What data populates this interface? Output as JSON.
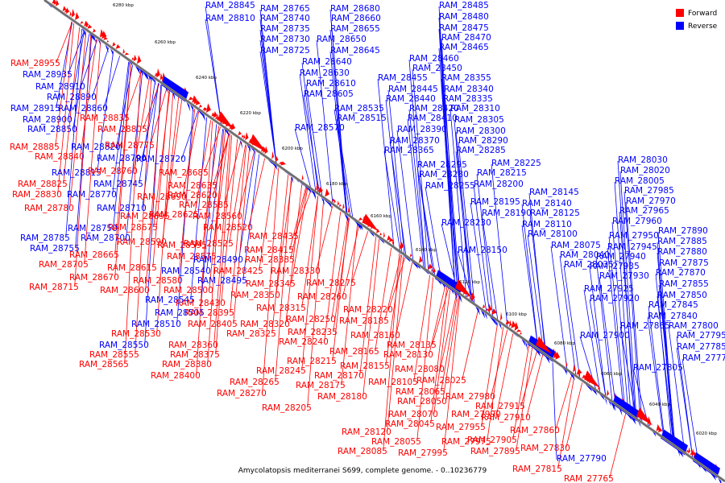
{
  "caption": "Amycolatopsis mediterranei S699, complete genome. - 0..10236779",
  "legend": [
    {
      "label": "Forward",
      "color": "#ff0000"
    },
    {
      "label": "Reverse",
      "color": "#0000ff"
    }
  ],
  "ticks": [
    "6280 kbp",
    "6260 kbp",
    "6240 kbp",
    "6220 kbp",
    "6200 kbp",
    "6180 kbp",
    "6160 kbp",
    "6140 kbp",
    "6120 kbp",
    "6100 kbp",
    "6080 kbp",
    "6060 kbp",
    "6040 kbp",
    "6020 kbp"
  ],
  "reverse_labels": [
    "RAM_28845",
    "RAM_28765",
    "RAM_28680",
    "RAM_28810",
    "RAM_28740",
    "RAM_28660",
    "RAM_28735",
    "RAM_28655",
    "RAM_28730",
    "RAM_28650",
    "RAM_28725",
    "RAM_28645",
    "RAM_28640",
    "RAM_28630",
    "RAM_28610",
    "RAM_28605",
    "RAM_28485",
    "RAM_28480",
    "RAM_28475",
    "RAM_28470",
    "RAM_28465",
    "RAM_28460",
    "RAM_28450",
    "RAM_28455",
    "RAM_28355",
    "RAM_28445",
    "RAM_28340",
    "RAM_28440",
    "RAM_28335",
    "RAM_28535",
    "RAM_28420",
    "RAM_28310",
    "RAM_28515",
    "RAM_28410",
    "RAM_28305",
    "RAM_28570",
    "RAM_28390",
    "RAM_28300",
    "RAM_28370",
    "RAM_28290",
    "RAM_28365",
    "RAM_28285",
    "RAM_28225",
    "RAM_28295",
    "RAM_28215",
    "RAM_28280",
    "RAM_28200",
    "RAM_28255",
    "RAM_28145",
    "RAM_28195",
    "RAM_28140",
    "RAM_28190",
    "RAM_28230",
    "RAM_28125",
    "RAM_28110",
    "RAM_28100",
    "RAM_28075",
    "RAM_28040",
    "RAM_28035",
    "RAM_28150",
    "RAM_28030",
    "RAM_28020",
    "RAM_28005",
    "RAM_27985",
    "RAM_27970",
    "RAM_27965",
    "RAM_27960",
    "RAM_27950",
    "RAM_27890",
    "RAM_27945",
    "RAM_27885",
    "RAM_27940",
    "RAM_27880",
    "RAM_27935",
    "RAM_27875",
    "RAM_27930",
    "RAM_27870",
    "RAM_27925",
    "RAM_27855",
    "RAM_27920",
    "RAM_27850",
    "RAM_27845",
    "RAM_27840",
    "RAM_27865",
    "RAM_27800",
    "RAM_27900",
    "RAM_27795",
    "RAM_27785",
    "RAM_27775",
    "RAM_27805",
    "RAM_27790",
    "RAM_28935",
    "RAM_28910",
    "RAM_28890",
    "RAM_28860",
    "RAM_28900",
    "RAM_28850",
    "RAM_28820",
    "RAM_28790",
    "RAM_28720",
    "RAM_28815",
    "RAM_28745",
    "RAM_28770",
    "RAM_28710",
    "RAM_28750",
    "RAM_28700",
    "RAM_28785",
    "RAM_28755",
    "RAM_28490",
    "RAM_28540",
    "RAM_28495",
    "RAM_28545",
    "RAM_28505",
    "RAM_28510",
    "RAM_28550",
    "RAM_28915"
  ],
  "forward_labels": [
    "RAM_28955",
    "RAM_28835",
    "RAM_28805",
    "RAM_28885",
    "RAM_28775",
    "RAM_28840",
    "RAM_28760",
    "RAM_28685",
    "RAM_28825",
    "RAM_28635",
    "RAM_28830",
    "RAM_28690",
    "RAM_28620",
    "RAM_28585",
    "RAM_28780",
    "RAM_28695",
    "RAM_28625",
    "RAM_28560",
    "RAM_28675",
    "RAM_28520",
    "RAM_28590",
    "RAM_28435",
    "RAM_28595",
    "RAM_28525",
    "RAM_28415",
    "RAM_28665",
    "RAM_28575",
    "RAM_28385",
    "RAM_28705",
    "RAM_28615",
    "RAM_28425",
    "RAM_28330",
    "RAM_28670",
    "RAM_28580",
    "RAM_28345",
    "RAM_28275",
    "RAM_28715",
    "RAM_28600",
    "RAM_28500",
    "RAM_28350",
    "RAM_28260",
    "RAM_28430",
    "RAM_28315",
    "RAM_28220",
    "RAM_28395",
    "RAM_28250",
    "RAM_28185",
    "RAM_28405",
    "RAM_28320",
    "RAM_28530",
    "RAM_28325",
    "RAM_28235",
    "RAM_28160",
    "RAM_28360",
    "RAM_28240",
    "RAM_28135",
    "RAM_28375",
    "RAM_28165",
    "RAM_28130",
    "RAM_28380",
    "RAM_28215",
    "RAM_28155",
    "RAM_28400",
    "RAM_28245",
    "RAM_28080",
    "RAM_28265",
    "RAM_28170",
    "RAM_28105",
    "RAM_28025",
    "RAM_28270",
    "RAM_28175",
    "RAM_28065",
    "RAM_28180",
    "RAM_28050",
    "RAM_27980",
    "RAM_28205",
    "RAM_28070",
    "RAM_27990",
    "RAM_27915",
    "RAM_28045",
    "RAM_27955",
    "RAM_27910",
    "RAM_28120",
    "RAM_27860",
    "RAM_28055",
    "RAM_27975",
    "RAM_27905",
    "RAM_28085",
    "RAM_27995",
    "RAM_27895",
    "RAM_27830",
    "RAM_27815",
    "RAM_27765",
    "RAM_28555",
    "RAM_28565"
  ]
}
